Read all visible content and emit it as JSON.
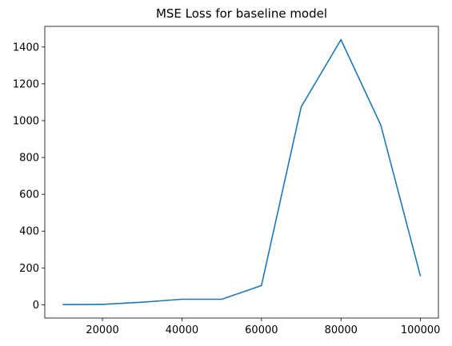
{
  "chart_data": {
    "type": "line",
    "title": "MSE Loss for baseline model",
    "xlabel": "",
    "ylabel": "",
    "x": [
      10000,
      20000,
      30000,
      40000,
      50000,
      60000,
      70000,
      80000,
      90000,
      100000
    ],
    "series": [
      {
        "values": [
          1,
          2,
          14,
          30,
          30,
          104,
          1075,
          1440,
          977,
          155
        ],
        "color": "#1f77b4"
      }
    ],
    "xlim": [
      5500,
      104500
    ],
    "ylim": [
      -72,
      1512
    ],
    "xticks": [
      20000,
      40000,
      60000,
      80000,
      100000
    ],
    "yticks": [
      0,
      200,
      400,
      600,
      800,
      1000,
      1200,
      1400
    ],
    "xtick_labels": [
      "20000",
      "40000",
      "60000",
      "80000",
      "100000"
    ],
    "ytick_labels": [
      "0",
      "200",
      "400",
      "600",
      "800",
      "1000",
      "1200",
      "1400"
    ],
    "grid": false,
    "legend": "none"
  }
}
